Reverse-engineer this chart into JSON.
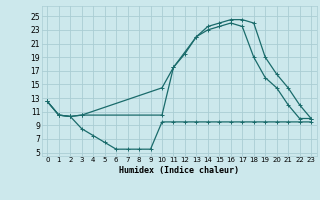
{
  "xlabel": "Humidex (Indice chaleur)",
  "bg_color": "#cce8ec",
  "grid_color": "#aacdd4",
  "line_color": "#1a6b6b",
  "xlim": [
    -0.5,
    23.5
  ],
  "ylim": [
    4.5,
    26.5
  ],
  "xticks": [
    0,
    1,
    2,
    3,
    4,
    5,
    6,
    7,
    8,
    9,
    10,
    11,
    12,
    13,
    14,
    15,
    16,
    17,
    18,
    19,
    20,
    21,
    22,
    23
  ],
  "yticks": [
    5,
    7,
    9,
    11,
    13,
    15,
    17,
    19,
    21,
    23,
    25
  ],
  "curve1_x": [
    0,
    1,
    2,
    3,
    10,
    11,
    13,
    14,
    15,
    16,
    17,
    18,
    19,
    20,
    21,
    22,
    23
  ],
  "curve1_y": [
    12.5,
    10.5,
    10.3,
    10.5,
    10.5,
    17.5,
    22.0,
    23.5,
    24.0,
    24.5,
    24.5,
    24.0,
    19.0,
    16.5,
    14.5,
    12.0,
    10.0
  ],
  "curve2_x": [
    0,
    1,
    2,
    3,
    10,
    11,
    12,
    13,
    14,
    15,
    16,
    17,
    18,
    19,
    20,
    21,
    22,
    23
  ],
  "curve2_y": [
    12.5,
    10.5,
    10.3,
    10.5,
    14.5,
    17.5,
    19.5,
    22.0,
    23.0,
    23.5,
    24.0,
    23.5,
    19.0,
    16.0,
    14.5,
    12.0,
    10.0,
    10.0
  ],
  "curve3_x": [
    0,
    1,
    2,
    3,
    4,
    5,
    6,
    7,
    8,
    9,
    10,
    11,
    12,
    13,
    14,
    15,
    16,
    17,
    18,
    19,
    20,
    21,
    22,
    23
  ],
  "curve3_y": [
    12.5,
    10.5,
    10.3,
    8.5,
    7.5,
    6.5,
    5.5,
    5.5,
    5.5,
    5.5,
    9.5,
    9.5,
    9.5,
    9.5,
    9.5,
    9.5,
    9.5,
    9.5,
    9.5,
    9.5,
    9.5,
    9.5,
    9.5,
    9.5
  ]
}
